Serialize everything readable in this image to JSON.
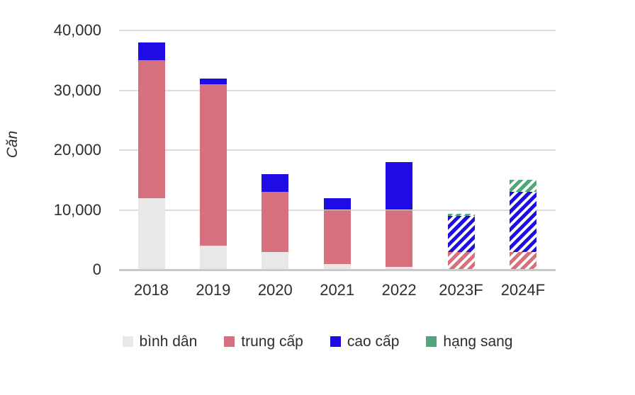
{
  "chart_data": {
    "type": "bar",
    "subtype": "stacked",
    "title": "",
    "xlabel": "",
    "ylabel": "Căn",
    "categories": [
      "2018",
      "2019",
      "2020",
      "2021",
      "2022",
      "2023F",
      "2024F"
    ],
    "forecast": [
      false,
      false,
      false,
      false,
      false,
      true,
      true
    ],
    "series": [
      {
        "name": "bình dân",
        "color": "#e8e8e8",
        "values": [
          12000,
          4000,
          3000,
          1000,
          500,
          0,
          0
        ]
      },
      {
        "name": "trung cấp",
        "color": "#d6707e",
        "values": [
          23000,
          27000,
          10000,
          9000,
          9500,
          3000,
          3000
        ]
      },
      {
        "name": "cao cấp",
        "color": "#1f0ce4",
        "values": [
          3000,
          1000,
          3000,
          2000,
          8000,
          6000,
          10000
        ]
      },
      {
        "name": "hạng sang",
        "color": "#52a67b",
        "values": [
          0,
          0,
          0,
          0,
          0,
          400,
          2000
        ]
      }
    ],
    "ylim": [
      0,
      40000
    ],
    "ytick_step": 10000,
    "ytick_labels": [
      "0",
      "10,000",
      "20,000",
      "30,000",
      "40,000"
    ],
    "grid": true,
    "legend_position": "bottom"
  },
  "style_colors": {
    "gridline": "#dcdcdc",
    "axis_line": "#c9c9c9",
    "text": "#2d2d2d",
    "background": "#ffffff"
  }
}
